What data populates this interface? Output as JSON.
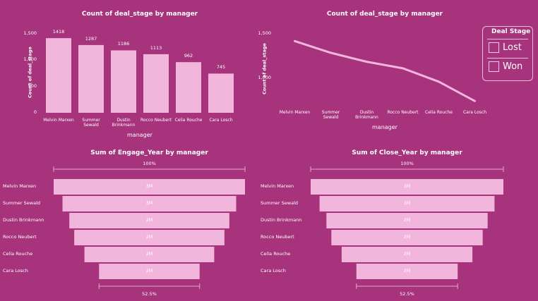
{
  "chart_data": [
    {
      "type": "bar",
      "title": "Count of deal_stage by manager",
      "x_label": "manager",
      "y_label": "Count of deal_stage",
      "categories": [
        "Melvin Marxen",
        "Summer Sewald",
        "Dustin Brinkmann",
        "Rocco Neubert",
        "Celia Rouche",
        "Cara Losch"
      ],
      "values": [
        1418,
        1287,
        1186,
        1113,
        962,
        745
      ],
      "color": "#f2b5dc",
      "ylim": [
        0,
        1500
      ],
      "yticks": [
        0,
        500,
        {
          "value": 1000,
          "label": "1,000"
        },
        {
          "value": 1500,
          "label": "1,500"
        }
      ]
    },
    {
      "type": "line",
      "title": "Count of deal_stage by manager",
      "x_label": "manager",
      "y_label": "Count of deal_stage",
      "categories": [
        "Melvin Marxen",
        "Summer Sewald",
        "Dustin Brinkmann",
        "Rocco Neubert",
        "Celia Rouche",
        "Cara Losch"
      ],
      "values": [
        1418,
        1287,
        1186,
        1113,
        962,
        745
      ],
      "color": "#f2b5dc",
      "ylim": [
        700,
        1500
      ],
      "yticks": [
        {
          "value": 1000,
          "label": "1,000"
        },
        {
          "value": 1500,
          "label": "1,500"
        }
      ]
    },
    {
      "type": "funnel",
      "title": "Sum of Engage_Year by manager",
      "categories": [
        "Melvin Marxen",
        "Summer Sewald",
        "Dustin Brinkmann",
        "Rocco Neubert",
        "Celia Rouche",
        "Cara Losch"
      ],
      "values": [
        2860000,
        2596000,
        2392000,
        2245000,
        1940000,
        1503000
      ],
      "value_labels": [
        "3M",
        "3M",
        "2M",
        "2M",
        "2M",
        "2M"
      ],
      "color": "#f2b5dc",
      "top_label": "100%",
      "bottom_label": "52.5%"
    },
    {
      "type": "funnel",
      "title": "Sum of Close_Year by manager",
      "categories": [
        "Melvin Marxen",
        "Summer Sewald",
        "Dustin Brinkmann",
        "Rocco Neubert",
        "Celia Rouche",
        "Cara Losch"
      ],
      "values": [
        2861000,
        2597000,
        2393000,
        2246000,
        1941000,
        1503500
      ],
      "value_labels": [
        "3M",
        "3M",
        "2M",
        "2M",
        "2M",
        "2M"
      ],
      "color": "#f2b5dc",
      "top_label": "100%",
      "bottom_label": "52.5%"
    }
  ],
  "slicer": {
    "title": "Deal Stage",
    "options": [
      "Lost",
      "Won"
    ]
  }
}
